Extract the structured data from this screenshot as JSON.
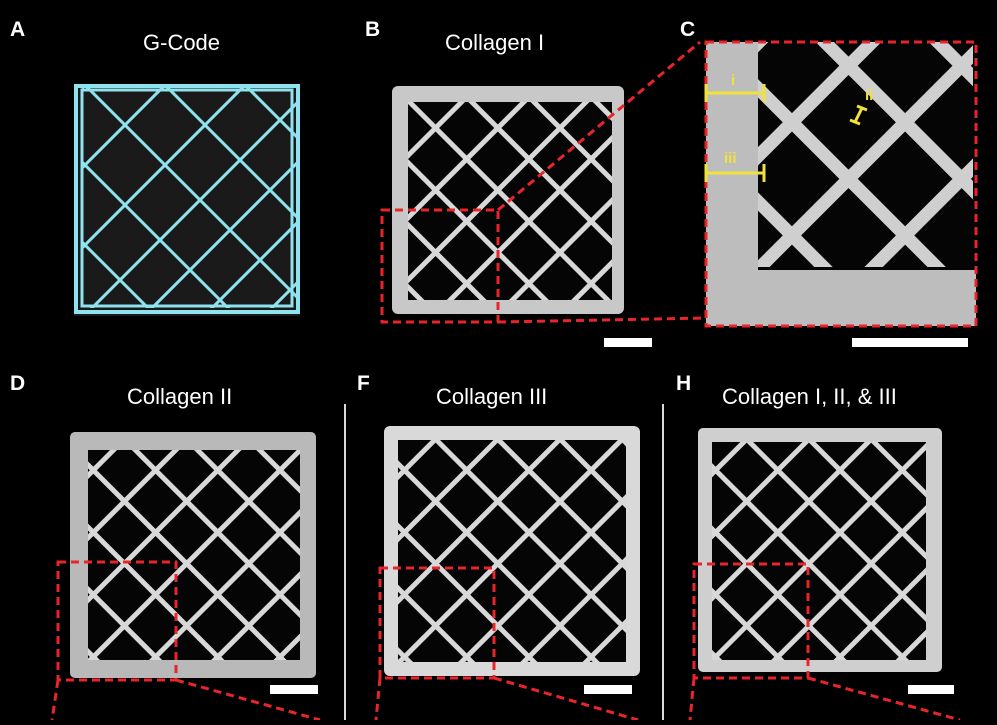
{
  "panels": {
    "A": {
      "label": "A",
      "title": "G-Code"
    },
    "B": {
      "label": "B",
      "title": "Collagen I"
    },
    "C": {
      "label": "C",
      "measures": [
        "i",
        "ii",
        "iii"
      ]
    },
    "D": {
      "label": "D",
      "title": "Collagen II"
    },
    "F": {
      "label": "F",
      "title": "Collagen III"
    },
    "H": {
      "label": "H",
      "title": "Collagen I, II, & III"
    }
  },
  "colors": {
    "gcode_lines": "#8fe3ee",
    "inset_box": "#e8252b",
    "measure": "#f1e23a",
    "scale_bar": "#ffffff",
    "scaffold": "#d8d8d8",
    "background": "#000000"
  }
}
